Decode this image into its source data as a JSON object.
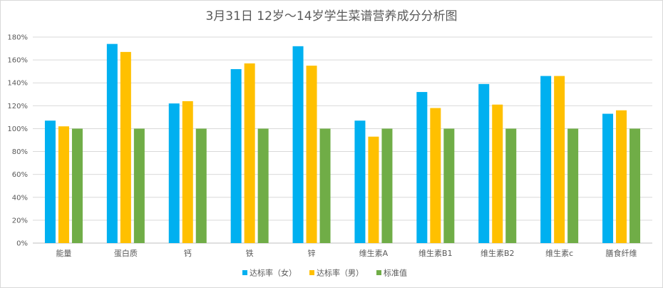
{
  "chart_data": {
    "type": "bar",
    "title": "3月31日 12岁～14岁学生菜谱营养成分分析图",
    "categories": [
      "能量",
      "蛋白质",
      "钙",
      "铁",
      "锌",
      "维生素A",
      "维生素B1",
      "维生素B2",
      "维生素c",
      "膳食纤维"
    ],
    "series": [
      {
        "name": "达标率（女）",
        "color": "#00b0f0",
        "values": [
          107,
          174,
          122,
          152,
          172,
          107,
          132,
          139,
          146,
          113
        ]
      },
      {
        "name": "达标率（男）",
        "color": "#ffc000",
        "values": [
          102,
          167,
          124,
          157,
          155,
          93,
          118,
          121,
          146,
          116
        ]
      },
      {
        "name": "标准值",
        "color": "#70ad47",
        "values": [
          100,
          100,
          100,
          100,
          100,
          100,
          100,
          100,
          100,
          100
        ]
      }
    ],
    "ylim": [
      0,
      180
    ],
    "yticks": [
      "0%",
      "20%",
      "40%",
      "60%",
      "80%",
      "100%",
      "120%",
      "140%",
      "160%",
      "180%"
    ],
    "grid": true,
    "legend": "bottom"
  }
}
